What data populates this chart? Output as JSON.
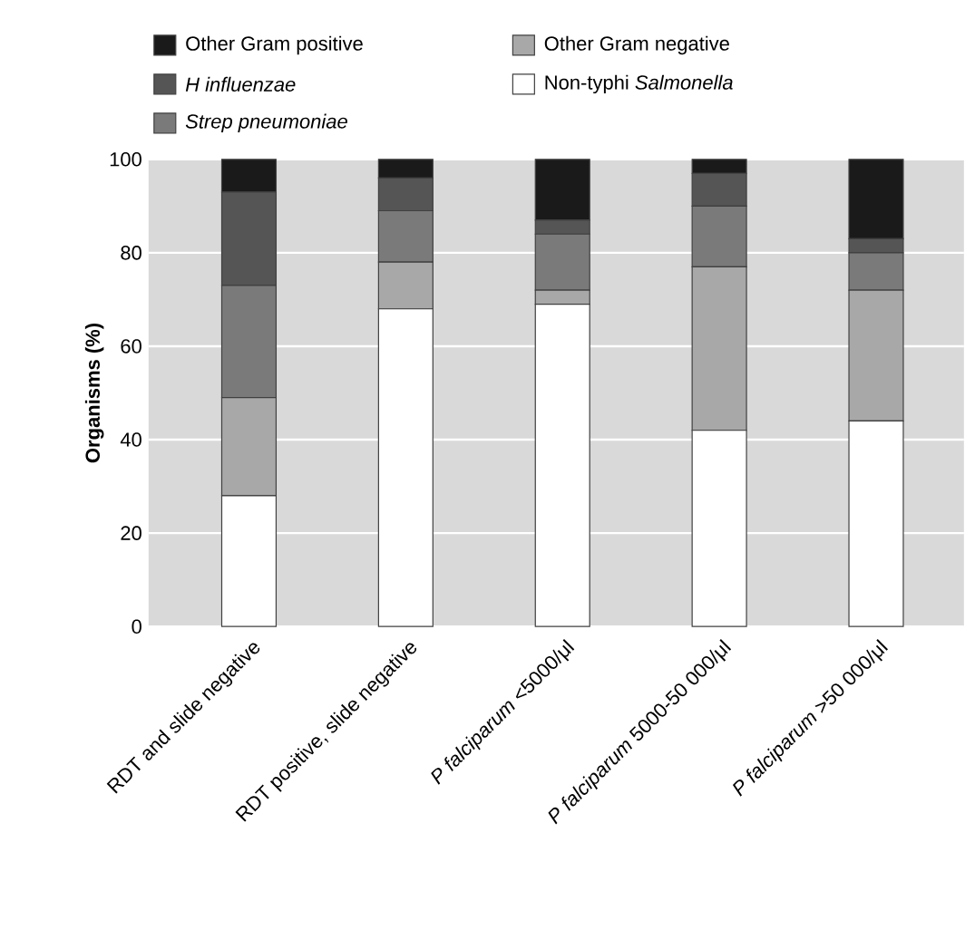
{
  "chart_data": {
    "type": "bar",
    "stacked": true,
    "ylabel": "Organisms (%)",
    "categories": [
      "RDT and slide negative",
      "RDT positive, slide negative",
      "*P falciparum* <5000/μl",
      "*P falciparum* 5000-50 000/μl",
      "*P falciparum* >50 000/μl"
    ],
    "series": [
      {
        "name": "Non-typhi *Salmonella*",
        "color": "#ffffff",
        "values": [
          28,
          68,
          69,
          42,
          44
        ]
      },
      {
        "name": "Other Gram negative",
        "color": "#a8a8a8",
        "values": [
          21,
          10,
          3,
          35,
          28
        ]
      },
      {
        "name": "*Strep pneumoniae*",
        "color": "#7a7a7a",
        "values": [
          24,
          11,
          12,
          13,
          8
        ]
      },
      {
        "name": "*H influenzae*",
        "color": "#555555",
        "values": [
          20,
          7,
          3,
          7,
          3
        ]
      },
      {
        "name": "Other Gram positive",
        "color": "#1a1a1a",
        "values": [
          7,
          4,
          13,
          3,
          17
        ]
      }
    ],
    "ylim": [
      0,
      100
    ],
    "yticks": [
      0,
      20,
      40,
      60,
      80,
      100
    ],
    "grid": "y",
    "legend": "top"
  }
}
